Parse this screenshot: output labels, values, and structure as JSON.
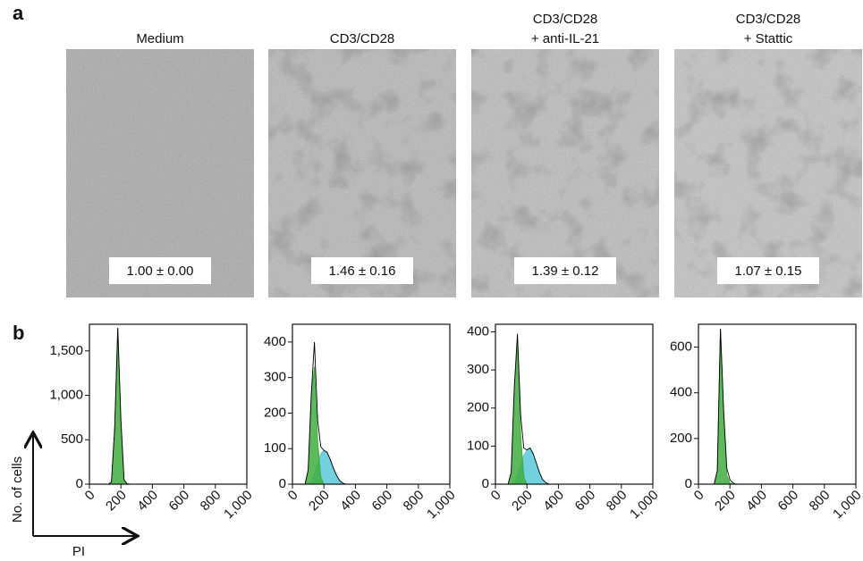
{
  "panel_a": {
    "label": "a",
    "images": [
      {
        "title": [
          "Medium"
        ],
        "value_label": "1.00 ± 0.00"
      },
      {
        "title": [
          "CD3/CD28"
        ],
        "value_label": "1.46 ± 0.16"
      },
      {
        "title": [
          "CD3/CD28",
          "+ anti-IL-21"
        ],
        "value_label": "1.39 ± 0.12"
      },
      {
        "title": [
          "CD3/CD28",
          "+ Stattic"
        ],
        "value_label": "1.07 ± 0.15"
      }
    ]
  },
  "panel_b": {
    "label": "b",
    "y_axis_label": "No. of cells",
    "x_axis_label": "PI"
  },
  "chart_data": [
    {
      "type": "area",
      "x": [
        60,
        80,
        100,
        120,
        140,
        160,
        180,
        200,
        220,
        240,
        260,
        280,
        300,
        320,
        340,
        360,
        400,
        1000
      ],
      "xlim": [
        0,
        1000
      ],
      "xticks": [
        0,
        200,
        400,
        600,
        800,
        {
          "value": 1000,
          "label": "1,000"
        }
      ],
      "ylim": [
        0,
        1800
      ],
      "yticks": [
        0,
        500,
        {
          "value": 1000,
          "label": "1,000"
        },
        {
          "value": 1500,
          "label": "1,500"
        }
      ],
      "series": [
        {
          "color": "#3fae3f",
          "values": [
            0,
            0,
            0,
            0,
            20,
            600,
            1750,
            700,
            40,
            0,
            0,
            0,
            0,
            0,
            0,
            0,
            0,
            0
          ]
        },
        {
          "color": "#000000",
          "values": [
            0,
            0,
            0,
            0,
            25,
            620,
            1760,
            720,
            50,
            5,
            0,
            0,
            0,
            0,
            0,
            0,
            0,
            0
          ]
        }
      ]
    },
    {
      "type": "area",
      "x": [
        60,
        80,
        100,
        120,
        140,
        160,
        180,
        200,
        220,
        240,
        260,
        280,
        300,
        320,
        340,
        360,
        400,
        1000
      ],
      "xlim": [
        0,
        1000
      ],
      "xticks": [
        0,
        200,
        400,
        600,
        800,
        {
          "value": 1000,
          "label": "1,000"
        }
      ],
      "ylim": [
        0,
        450
      ],
      "yticks": [
        0,
        100,
        200,
        300,
        400
      ],
      "series": [
        {
          "color": "#5bc8d8",
          "values": [
            0,
            0,
            0,
            5,
            30,
            60,
            85,
            95,
            90,
            70,
            45,
            25,
            10,
            3,
            0,
            0,
            0,
            0
          ]
        },
        {
          "color": "#3fae3f",
          "values": [
            0,
            0,
            40,
            250,
            330,
            120,
            20,
            0,
            0,
            0,
            0,
            0,
            0,
            0,
            0,
            0,
            0,
            0
          ]
        },
        {
          "color": "#000000",
          "values": [
            0,
            0,
            40,
            255,
            400,
            180,
            105,
            95,
            90,
            70,
            45,
            25,
            10,
            3,
            0,
            0,
            0,
            0
          ]
        }
      ]
    },
    {
      "type": "area",
      "x": [
        60,
        80,
        100,
        120,
        140,
        160,
        180,
        200,
        220,
        240,
        260,
        280,
        300,
        320,
        340,
        360,
        400,
        1000
      ],
      "xlim": [
        0,
        1000
      ],
      "xticks": [
        0,
        200,
        400,
        600,
        800,
        {
          "value": 1000,
          "label": "1,000"
        }
      ],
      "ylim": [
        0,
        420
      ],
      "yticks": [
        0,
        100,
        200,
        300,
        400
      ],
      "series": [
        {
          "color": "#5bc8d8",
          "values": [
            0,
            0,
            0,
            5,
            25,
            50,
            75,
            90,
            95,
            80,
            55,
            30,
            12,
            4,
            0,
            0,
            0,
            0
          ]
        },
        {
          "color": "#3fae3f",
          "values": [
            0,
            0,
            30,
            250,
            370,
            130,
            20,
            0,
            0,
            0,
            0,
            0,
            0,
            0,
            0,
            0,
            0,
            0
          ]
        },
        {
          "color": "#000000",
          "values": [
            0,
            0,
            30,
            255,
            395,
            180,
            95,
            90,
            95,
            80,
            55,
            30,
            12,
            4,
            0,
            0,
            0,
            0
          ]
        }
      ]
    },
    {
      "type": "area",
      "x": [
        60,
        80,
        100,
        120,
        140,
        160,
        180,
        200,
        220,
        240,
        260,
        280,
        300,
        320,
        340,
        360,
        400,
        1000
      ],
      "xlim": [
        0,
        1000
      ],
      "xticks": [
        0,
        200,
        400,
        600,
        800,
        {
          "value": 1000,
          "label": "1,000"
        }
      ],
      "ylim": [
        0,
        700
      ],
      "yticks": [
        0,
        200,
        400,
        600
      ],
      "series": [
        {
          "color": "#3fae3f",
          "values": [
            0,
            0,
            0,
            60,
            680,
            300,
            40,
            5,
            0,
            0,
            0,
            0,
            0,
            0,
            0,
            0,
            0,
            0
          ]
        },
        {
          "color": "#000000",
          "values": [
            0,
            0,
            0,
            60,
            680,
            320,
            70,
            20,
            5,
            0,
            0,
            0,
            0,
            0,
            0,
            0,
            0,
            0
          ]
        }
      ]
    }
  ]
}
